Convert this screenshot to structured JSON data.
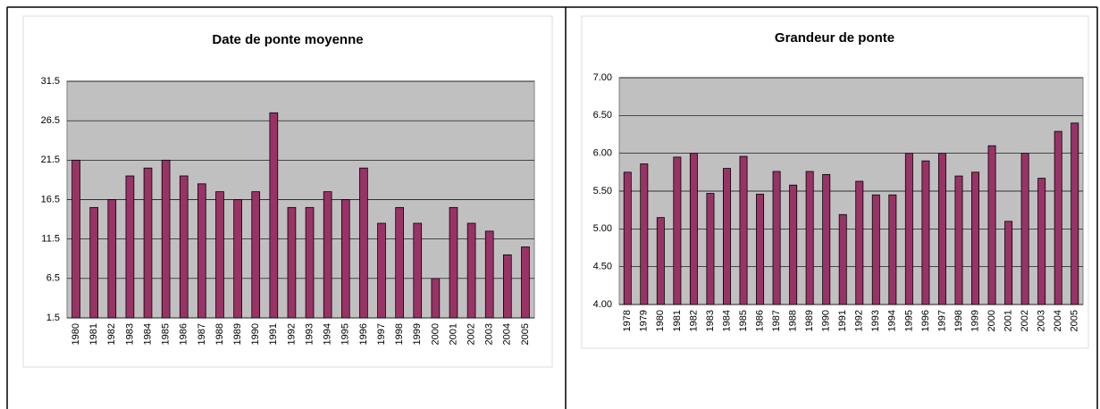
{
  "chart_data": [
    {
      "type": "bar",
      "title": "Date de ponte moyenne",
      "categories": [
        "1980",
        "1981",
        "1982",
        "1983",
        "1984",
        "1985",
        "1986",
        "1987",
        "1988",
        "1989",
        "1990",
        "1991",
        "1992",
        "1993",
        "1994",
        "1995",
        "1996",
        "1997",
        "1998",
        "1999",
        "2000",
        "2001",
        "2002",
        "2003",
        "2004",
        "2005"
      ],
      "values": [
        21.5,
        15.5,
        16.5,
        19.5,
        20.5,
        21.5,
        19.5,
        18.5,
        17.5,
        16.5,
        17.5,
        27.5,
        15.5,
        15.5,
        17.5,
        16.5,
        20.5,
        13.5,
        15.5,
        13.5,
        6.5,
        15.5,
        13.5,
        12.5,
        9.5,
        10.5
      ],
      "color": "#993366",
      "ylim": [
        1.5,
        31.5
      ],
      "yticks": [
        1.5,
        6.5,
        11.5,
        16.5,
        21.5,
        26.5,
        31.5
      ],
      "grid": true
    },
    {
      "type": "bar",
      "title": "Grandeur de ponte",
      "categories": [
        "1978",
        "1979",
        "1980",
        "1981",
        "1982",
        "1983",
        "1984",
        "1985",
        "1986",
        "1987",
        "1988",
        "1989",
        "1990",
        "1991",
        "1992",
        "1993",
        "1994",
        "1995",
        "1996",
        "1997",
        "1998",
        "1999",
        "2000",
        "2001",
        "2002",
        "2003",
        "2004",
        "2005"
      ],
      "values": [
        5.75,
        5.86,
        5.15,
        5.95,
        6.0,
        5.47,
        5.8,
        5.96,
        5.46,
        5.76,
        5.58,
        5.76,
        5.72,
        5.19,
        5.63,
        5.45,
        5.45,
        6.0,
        5.9,
        6.0,
        5.7,
        5.75,
        6.1,
        5.1,
        6.0,
        5.67,
        6.29,
        6.4
      ],
      "color": "#993366",
      "ylim": [
        4,
        7
      ],
      "yticks": [
        {
          "value": 4,
          "label": "4.00"
        },
        {
          "value": 4.5,
          "label": "4.50"
        },
        {
          "value": 5,
          "label": "5.00"
        },
        {
          "value": 5.5,
          "label": "5.50"
        },
        {
          "value": 6,
          "label": "6.00"
        },
        {
          "value": 6.5,
          "label": "6.50"
        },
        {
          "value": 7,
          "label": "7.00"
        }
      ],
      "grid": true
    }
  ]
}
